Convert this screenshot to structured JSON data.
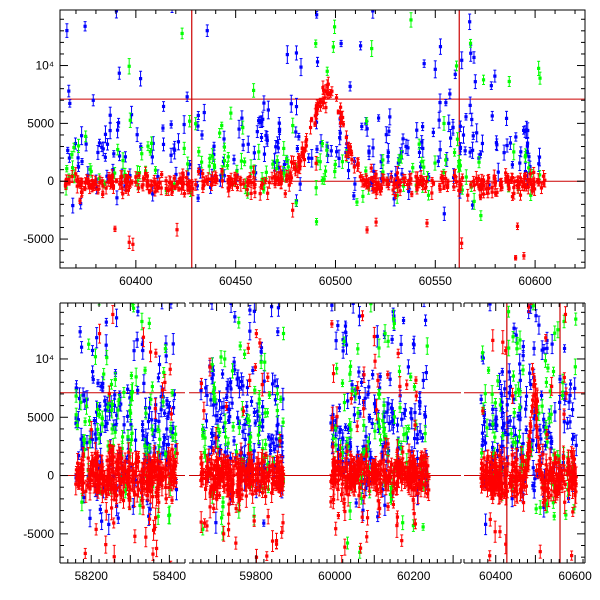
{
  "colors": {
    "blue": "#0000ff",
    "green": "#00ff00",
    "red": "#ff0000",
    "axis": "#000000",
    "guide": "#cc0000"
  },
  "chart_data": [
    {
      "type": "scatter",
      "panel": "top",
      "title": "",
      "xlabel": "",
      "ylabel": "",
      "xlim": [
        60362,
        60625
      ],
      "ylim": [
        -7500,
        14800
      ],
      "grid": false,
      "x_tick_labels": [
        "60400",
        "60450",
        "60500",
        "60550",
        "60600"
      ],
      "x_tick_values": [
        60400,
        60450,
        60500,
        60550,
        60600
      ],
      "y_tick_labels": [
        "-5000",
        "0",
        "5000",
        "10⁴"
      ],
      "y_tick_values": [
        -5000,
        0,
        5000,
        10000
      ],
      "hlines": [
        7100,
        0
      ],
      "vlines": [
        60428,
        60562
      ],
      "series": [
        {
          "name": "blue",
          "color": "blue",
          "description": "scattered points with error bars, mostly 0 to 8000, many outliers up to 14000",
          "sample_x": [
            60365,
            60380,
            60395,
            60410,
            60425,
            60440,
            60455,
            60470,
            60485,
            60500,
            60515,
            60530,
            60545,
            60560,
            60575,
            60590,
            60600
          ],
          "sample_y": [
            3000,
            4500,
            6000,
            2500,
            4000,
            3500,
            5000,
            4000,
            6500,
            3000,
            4500,
            5500,
            4000,
            6000,
            3500,
            2500,
            1500
          ]
        },
        {
          "name": "green",
          "color": "green",
          "description": "scattered points with error bars, mostly -1000 to 4000",
          "sample_x": [
            60365,
            60380,
            60395,
            60410,
            60425,
            60440,
            60455,
            60470,
            60485,
            60500,
            60515,
            60530,
            60545,
            60560,
            60575,
            60590
          ],
          "sample_y": [
            1500,
            500,
            2000,
            1000,
            2500,
            -500,
            1500,
            2000,
            3000,
            1000,
            2000,
            500,
            1500,
            2500,
            1000,
            3000
          ]
        },
        {
          "name": "red",
          "color": "red",
          "description": "dense points near 0 with a flare peaking ~8000 around MJD 60497",
          "sample_x": [
            60362,
            60380,
            60400,
            60420,
            60440,
            60460,
            60470,
            60480,
            60488,
            60493,
            60497,
            60502,
            60508,
            60515,
            60525,
            60540,
            60560,
            60580,
            60600
          ],
          "sample_y": [
            -300,
            -200,
            -200,
            0,
            -100,
            300,
            800,
            1800,
            4000,
            6500,
            7800,
            6000,
            3500,
            1500,
            500,
            100,
            -200,
            0,
            -300
          ]
        }
      ]
    },
    {
      "type": "scatter",
      "panel": "bottom",
      "title": "",
      "xlabel": "",
      "ylabel": "",
      "broken_axis": true,
      "segments": [
        {
          "xlim": [
            58120,
            58440
          ],
          "x_tick_labels": [
            "58200",
            "58400"
          ],
          "x_tick_values": [
            58200,
            58400
          ]
        },
        {
          "xlim": [
            59630,
            60320
          ],
          "x_tick_labels": [
            "59800",
            "60000",
            "60200"
          ],
          "x_tick_values": [
            59800,
            60000,
            60200
          ]
        },
        {
          "xlim": [
            60320,
            60625
          ],
          "x_tick_labels": [
            "60400",
            "60600"
          ],
          "x_tick_values": [
            60400,
            60600
          ]
        }
      ],
      "ylim": [
        -7500,
        14800
      ],
      "grid": false,
      "y_tick_labels": [
        "-5000",
        "0",
        "5000",
        "10⁴"
      ],
      "y_tick_values": [
        -5000,
        0,
        5000,
        10000
      ],
      "hlines": [
        7100,
        0
      ],
      "vlines": [
        60428,
        60562
      ],
      "series": [
        {
          "name": "blue",
          "color": "blue",
          "description": "scattered points, 0 to 14000, across four observing seasons",
          "sample_x": [
            58170,
            58230,
            58300,
            58380,
            59690,
            59750,
            59820,
            59990,
            60050,
            60110,
            60190,
            60370,
            60430,
            60500,
            60580
          ],
          "sample_y": [
            3000,
            7000,
            5000,
            4000,
            6000,
            3000,
            8000,
            4500,
            9000,
            5500,
            3000,
            4000,
            7000,
            5000,
            6000
          ]
        },
        {
          "name": "green",
          "color": "green",
          "description": "scattered points, mostly 0 to 12000",
          "sample_x": [
            58180,
            58260,
            58340,
            59700,
            59770,
            59850,
            60010,
            60090,
            60170,
            60380,
            60460,
            60560
          ],
          "sample_y": [
            5000,
            9000,
            3000,
            6000,
            2000,
            7000,
            8000,
            4000,
            3000,
            6000,
            9000,
            4000
          ]
        },
        {
          "name": "red",
          "color": "red",
          "description": "dense points around 0 with large error bars; flare ~8000 near MJD 60497",
          "sample_x": [
            58160,
            58220,
            58290,
            58360,
            58420,
            59660,
            59730,
            59800,
            59860,
            59990,
            60070,
            60140,
            60220,
            60360,
            60420,
            60480,
            60497,
            60530,
            60600
          ],
          "sample_y": [
            -200,
            300,
            -500,
            200,
            -300,
            0,
            -400,
            500,
            -200,
            -300,
            200,
            -600,
            100,
            -200,
            0,
            2000,
            8000,
            1500,
            -300
          ]
        }
      ]
    }
  ]
}
